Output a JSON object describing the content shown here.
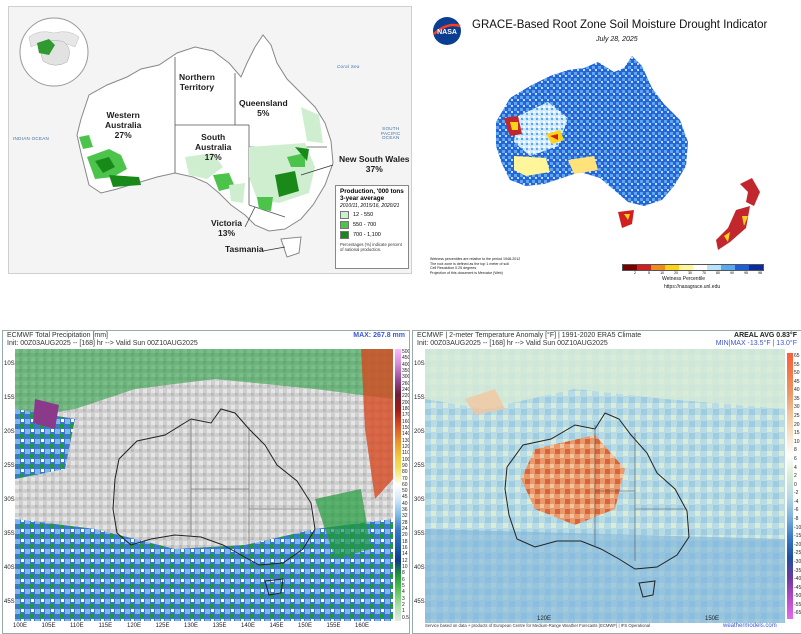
{
  "panel1": {
    "states": [
      {
        "name": "Western\nAustralia\n27%"
      },
      {
        "name": "Northern\nTerritory"
      },
      {
        "name": "Queensland\n5%"
      },
      {
        "name": "South\nAustralia\n17%"
      },
      {
        "name": "New South Wales\n37%"
      },
      {
        "name": "Victoria\n13%"
      },
      {
        "name": "Tasmania"
      }
    ],
    "oceans": {
      "indian": "INDIAN OCEAN",
      "pacific": "SOUTH\nPACIFIC\nOCEAN",
      "coral": "Coral Sea"
    },
    "legend": {
      "title": "Production, '000 tons\n3-year average",
      "years": "2010/11, 2015/16, 2020/21",
      "items": [
        {
          "label": "12 - 550",
          "color": "#cfeecf"
        },
        {
          "label": "550 - 700",
          "color": "#4cc44c"
        },
        {
          "label": "700 - 1,100",
          "color": "#198a19"
        }
      ],
      "note": "Percentages (%) indicate percent\nof national production."
    }
  },
  "panel2": {
    "title": "GRACE-Based Root Zone Soil Moisture Drought Indicator",
    "date": "July 28, 2025",
    "footnotes": [
      "Wetness percentiles are relative to the period 1948-2012",
      "The root zone is defined as the top 1 meter of soil",
      "Cell Resolution 0.25 degrees",
      "Projection of this document is Mercator (Web)"
    ],
    "cbar_label": "Wetness Percentile",
    "url": "https://nasagrace.unl.edu",
    "cbar_colors": [
      "#7a0000",
      "#d11f1f",
      "#f08a1d",
      "#ffd21a",
      "#fff59a",
      "#ffffff",
      "#b7e3ff",
      "#5aa8f0",
      "#1f5fd6",
      "#0a2aa0"
    ],
    "cbar_ticks": [
      "2",
      "5",
      "10",
      "20",
      "30",
      "70",
      "80",
      "90",
      "95",
      "98"
    ]
  },
  "panel3": {
    "title": "ECMWF Total Precipitation [mm]",
    "init": "Init: 00Z03AUG2025 -- [168] hr --> Valid Sun 00Z10AUG2025",
    "max": "MAX: 267.8 mm",
    "lats": [
      "10S",
      "15S",
      "20S",
      "25S",
      "30S",
      "35S",
      "40S",
      "45S"
    ],
    "lons": [
      "100E",
      "105E",
      "110E",
      "115E",
      "120E",
      "125E",
      "130E",
      "135E",
      "140E",
      "145E",
      "150E",
      "155E",
      "160E"
    ],
    "cbar": [
      "500",
      "450",
      "400",
      "350",
      "300",
      "260",
      "240",
      "220",
      "200",
      "180",
      "170",
      "160",
      "150",
      "140",
      "130",
      "120",
      "110",
      "100",
      "90",
      "80",
      "70",
      "60",
      "50",
      "45",
      "40",
      "36",
      "32",
      "28",
      "24",
      "20",
      "18",
      "16",
      "14",
      "12",
      "10",
      "8",
      "6",
      "5",
      "4",
      "3",
      "2",
      "1",
      "0.5"
    ]
  },
  "panel4": {
    "title": "ECMWF | 2-meter Temperature Anomaly [°F] | 1991-2020 ERA5 Climate",
    "init": "Init: 00Z03AUG2025 -- [168] hr --> Valid Sun 00Z10AUG2025",
    "areal": "AREAL AVG 0.83°F",
    "minmax": "MIN|MAX -13.5°F | 13.0°F",
    "lats": [
      "10S",
      "15S",
      "20S",
      "25S",
      "30S",
      "35S",
      "40S",
      "45S"
    ],
    "lons": [
      "120E",
      "150E"
    ],
    "cbar": [
      "65",
      "55",
      "50",
      "45",
      "40",
      "35",
      "30",
      "25",
      "20",
      "15",
      "10",
      "8",
      "6",
      "4",
      "2",
      "0",
      "-2",
      "-4",
      "-6",
      "-8",
      "-10",
      "-15",
      "-20",
      "-25",
      "-30",
      "-35",
      "-40",
      "-45",
      "-50",
      "-55",
      "-65"
    ],
    "footer": "Service based on data + products of European Centre for Medium-Range Weather Forecasts (ECMWF) | IFS Operational",
    "brand": "weathermodels.com"
  }
}
